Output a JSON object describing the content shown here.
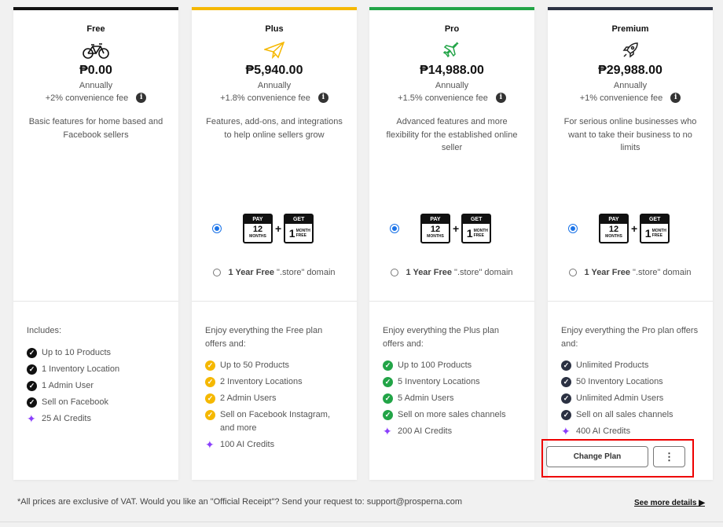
{
  "plans": [
    {
      "name": "Free",
      "icon": "bicycle-icon",
      "accent": "#111111",
      "price": "₱0.00",
      "period": "Annually",
      "fee": "+2% convenience fee",
      "description": "Basic features for home based and Facebook sellers",
      "has_promo": false,
      "intro": "Includes:",
      "features": [
        "Up to 10 Products",
        "1 Inventory Location",
        "1 Admin User",
        "Sell on Facebook"
      ],
      "credits": "25 AI Credits",
      "check_color": "#111111"
    },
    {
      "name": "Plus",
      "icon": "paper-plane-icon",
      "accent": "#f5b800",
      "price": "₱5,940.00",
      "period": "Annually",
      "fee": "+1.8% convenience fee",
      "description": "Features, add-ons, and integrations to help online sellers grow",
      "has_promo": true,
      "intro": "Enjoy everything the Free plan offers and:",
      "features": [
        "Up to 50 Products",
        "2 Inventory Locations",
        "2 Admin Users",
        "Sell on Facebook Instagram, and more"
      ],
      "credits": "100 AI Credits",
      "check_color": "#f5b800"
    },
    {
      "name": "Pro",
      "icon": "airplane-icon",
      "accent": "#22a447",
      "price": "₱14,988.00",
      "period": "Annually",
      "fee": "+1.5% convenience fee",
      "description": "Advanced features and more flexibility for the established online seller",
      "has_promo": true,
      "intro": "Enjoy everything the Plus plan offers and:",
      "features": [
        "Up to 100 Products",
        "5 Inventory Locations",
        "5 Admin Users",
        "Sell on more sales channels"
      ],
      "credits": "200 AI Credits",
      "check_color": "#22a447"
    },
    {
      "name": "Premium",
      "icon": "rocket-icon",
      "accent": "#2b3142",
      "price": "₱29,988.00",
      "period": "Annually",
      "fee": "+1% convenience fee",
      "description": "For serious online businesses who want to take their business to no limits",
      "has_promo": true,
      "intro": "Enjoy everything the Pro plan offers and:",
      "features": [
        "Unlimited Products",
        "50 Inventory Locations",
        "Unlimited Admin Users",
        "Sell on all sales channels"
      ],
      "credits": "400 AI Credits",
      "check_color": "#2b3142"
    }
  ],
  "promo": {
    "pay_label": "PAY",
    "pay_num": "12",
    "pay_unit": "MONTHS",
    "plus": "+",
    "get_label": "GET",
    "get_num": "1",
    "get_unit": "MONTH FREE",
    "domain_bold": "1 Year Free",
    "domain_rest": " \".store\" domain"
  },
  "actions": {
    "change_plan": "Change Plan",
    "more": "⋮"
  },
  "footer": {
    "note": "*All prices are exclusive of VAT. Would you like an \"Official Receipt\"? Send your request to: support@prosperna.com",
    "see_more": "See more details ▶"
  }
}
